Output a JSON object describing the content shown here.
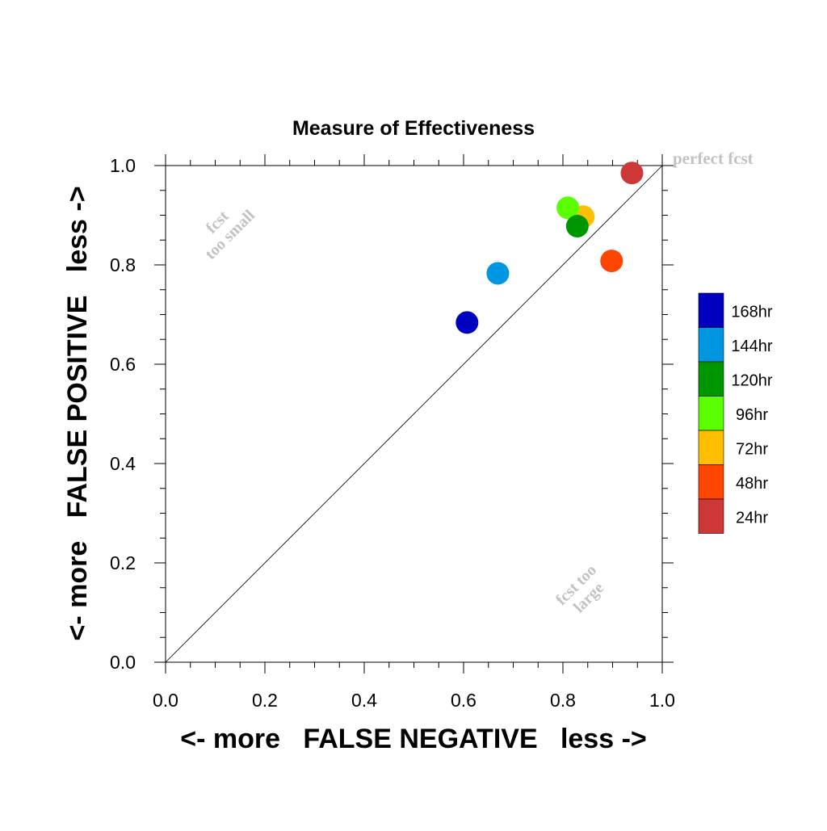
{
  "chart_data": {
    "type": "scatter",
    "title": "Measure of Effectiveness",
    "xlabel": "<- more   FALSE NEGATIVE   less ->",
    "ylabel": "<- more   FALSE POSITIVE   less ->",
    "xlim": [
      0.0,
      1.0
    ],
    "ylim": [
      0.0,
      1.0
    ],
    "x_ticks": [
      "0.0",
      "0.2",
      "0.4",
      "0.6",
      "0.8",
      "1.0"
    ],
    "y_ticks": [
      "0.0",
      "0.2",
      "0.4",
      "0.6",
      "0.8",
      "1.0"
    ],
    "grid": false,
    "legend_position": "right",
    "reference_line": {
      "from": [
        0.0,
        0.0
      ],
      "to": [
        1.0,
        1.0
      ]
    },
    "annotations": {
      "top_left": [
        "fcst",
        "too small"
      ],
      "bottom_right": [
        "fcst too",
        "large"
      ],
      "corner": "perfect fcst"
    },
    "series": [
      {
        "name": "168hr",
        "color": "#0000c0",
        "x": 0.607,
        "y": 0.684
      },
      {
        "name": "144hr",
        "color": "#0096e1",
        "x": 0.669,
        "y": 0.783
      },
      {
        "name": "120hr",
        "color": "#009600",
        "x": 0.829,
        "y": 0.878
      },
      {
        "name": "96hr",
        "color": "#5aff00",
        "x": 0.81,
        "y": 0.915
      },
      {
        "name": "72hr",
        "color": "#ffbe00",
        "x": 0.841,
        "y": 0.897
      },
      {
        "name": "48hr",
        "color": "#ff4600",
        "x": 0.898,
        "y": 0.808
      },
      {
        "name": "24hr",
        "color": "#cd3737",
        "x": 0.939,
        "y": 0.985
      }
    ],
    "draw_order": [
      "168hr",
      "144hr",
      "72hr",
      "96hr",
      "120hr",
      "48hr",
      "24hr"
    ]
  }
}
